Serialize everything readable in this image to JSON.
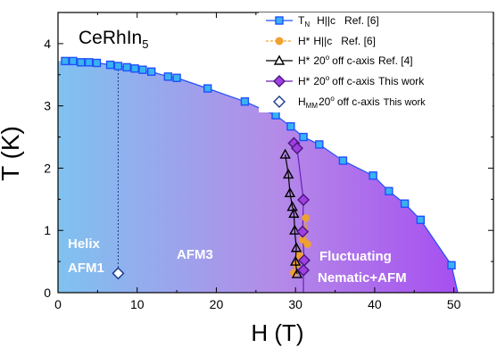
{
  "chart_data": {
    "type": "scatter",
    "xlabel": "H (T)",
    "ylabel": "T (K)",
    "xlim": [
      0,
      55
    ],
    "ylim": [
      0,
      4.5
    ],
    "x_ticks": [
      0,
      10,
      20,
      30,
      40,
      50
    ],
    "y_ticks": [
      0,
      1,
      2,
      3,
      4
    ],
    "grid": false,
    "annotations": {
      "compound": "CeRhIn",
      "compound_sub": "5",
      "helix_1": "Helix",
      "helix_2": "AFM1",
      "afm3": "AFM3",
      "fluct_1": "Fluctuating",
      "fluct_2": "Nematic+AFM"
    },
    "legend_placement": "top-right",
    "colors": {
      "tn": "#1f4fff",
      "tn_fill": "#39b3f0",
      "ref6": "#f0a030",
      "ref4": "#000000",
      "thiswork": "#6a1fb5",
      "thiswork_fill": "#a040e0",
      "hmm": "#1a3a8a",
      "bg_left": "#7fc2f0",
      "bg_mid": "#b48ae8",
      "bg_right": "#a64ff0"
    },
    "series": [
      {
        "key": "tn",
        "legend_main": "T",
        "legend_sub": "N",
        "legend_cond": "H||c",
        "legend_ref": "Ref. [6]",
        "x": [
          0.9,
          1.9,
          2.9,
          3.9,
          4.9,
          6.6,
          7.6,
          8.7,
          9.7,
          10.7,
          11.8,
          13.9,
          15.0,
          18.9,
          23.6,
          27.5,
          29.4,
          31.0,
          33.0,
          36.0,
          39.8,
          41.8,
          43.8,
          45.8,
          49.7
        ],
        "y": [
          3.72,
          3.72,
          3.7,
          3.7,
          3.69,
          3.66,
          3.64,
          3.62,
          3.6,
          3.58,
          3.55,
          3.47,
          3.45,
          3.28,
          3.07,
          2.85,
          2.67,
          2.5,
          2.38,
          2.12,
          1.88,
          1.63,
          1.43,
          1.17,
          0.44
        ]
      },
      {
        "key": "ref6",
        "legend_main": "H*",
        "legend_sub": "",
        "legend_cond": "H||c",
        "legend_ref": "Ref. [6]",
        "x": [
          29.8,
          30.1,
          30.5,
          30.9,
          31.1,
          31.3,
          31.5
        ],
        "y": [
          0.32,
          0.45,
          0.6,
          0.85,
          1.0,
          1.2,
          0.78
        ]
      },
      {
        "key": "ref4",
        "legend_main": "H*",
        "legend_sup": "o",
        "legend_cond": "20",
        "legend_tail": "off c-axis",
        "legend_ref": "Ref. [4]",
        "x": [
          28.7,
          29.1,
          29.3,
          29.6,
          29.8,
          29.9,
          30.1,
          30.0,
          30.2
        ],
        "y": [
          2.22,
          1.9,
          1.6,
          1.38,
          1.27,
          1.0,
          0.72,
          0.5,
          0.3
        ]
      },
      {
        "key": "thiswork",
        "legend_main": "H*",
        "legend_sup": "o",
        "legend_cond": "20",
        "legend_tail": "off c-axis",
        "legend_ref": "This work",
        "x": [
          29.8,
          30.2,
          31.0,
          30.9,
          31.1,
          31.0
        ],
        "y": [
          2.4,
          2.32,
          1.49,
          0.98,
          0.52,
          0.36
        ]
      },
      {
        "key": "hmm",
        "legend_main": "H",
        "legend_sub": "MM",
        "legend_sup": "o",
        "legend_cond": "20",
        "legend_tail": "off c-axis",
        "legend_ref": "This work",
        "x": [
          7.6
        ],
        "y": [
          0.31
        ]
      }
    ]
  }
}
